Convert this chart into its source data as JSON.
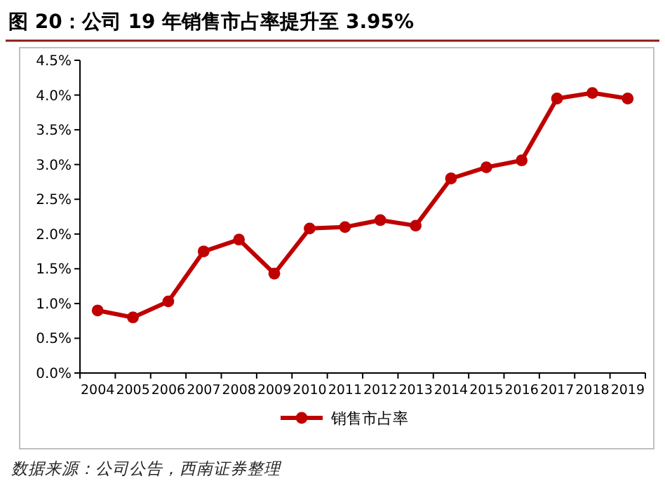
{
  "chart_data": {
    "type": "line",
    "title": "**图 20：公司 19 年销售市占率提升至 3.95%**",
    "categories": [
      "2004",
      "2005",
      "2006",
      "2007",
      "2008",
      "2009",
      "2010",
      "2011",
      "2012",
      "2013",
      "2014",
      "2015",
      "2016",
      "2017",
      "2018",
      "2019"
    ],
    "series": [
      {
        "name": "销售市占率",
        "color": "#c00000",
        "values": [
          0.9,
          0.8,
          1.03,
          1.75,
          1.92,
          1.43,
          2.08,
          2.1,
          2.2,
          2.12,
          2.8,
          2.96,
          3.06,
          3.95,
          4.03,
          3.95
        ]
      }
    ],
    "ylim": [
      0,
      4.5
    ],
    "yticks": [
      {
        "value": 0,
        "label": "0.0%"
      },
      {
        "value": 0.5,
        "label": "0.5%"
      },
      {
        "value": 1,
        "label": "1.0%"
      },
      {
        "value": 1.5,
        "label": "1.5%"
      },
      {
        "value": 2,
        "label": "2.0%"
      },
      {
        "value": 2.5,
        "label": "2.5%"
      },
      {
        "value": 3,
        "label": "3.0%"
      },
      {
        "value": 3.5,
        "label": "3.5%"
      },
      {
        "value": 4,
        "label": "4.0%"
      },
      {
        "value": 4.5,
        "label": "4.5%"
      }
    ],
    "marker": "circle",
    "legend": "bottom",
    "annotations": [
      "*数据来源：公司公告，西南证券整理*"
    ]
  }
}
